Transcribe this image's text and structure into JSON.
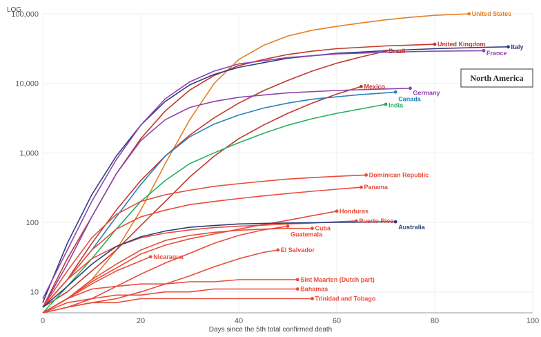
{
  "chart_data": {
    "type": "line",
    "title": "",
    "ylabel": "LOG",
    "xlabel": "Days since the 5th total confirmed death",
    "yscale": "log",
    "xlim": [
      0,
      100
    ],
    "ylim": [
      5,
      100000
    ],
    "x_ticks": [
      0,
      20,
      40,
      60,
      80,
      100
    ],
    "y_ticks": [
      10,
      100,
      1000,
      10000,
      100000
    ],
    "y_tick_labels": [
      "10",
      "100",
      "1,000",
      "10,000",
      "100,000"
    ],
    "grid": true,
    "panel_title": "North America",
    "series": [
      {
        "name": "United States",
        "color": "#e67e22",
        "x": [
          0,
          5,
          10,
          15,
          20,
          25,
          30,
          35,
          40,
          45,
          50,
          55,
          60,
          65,
          70,
          75,
          80,
          87
        ],
        "y": [
          5,
          8,
          15,
          40,
          150,
          700,
          3000,
          10000,
          22000,
          35000,
          48000,
          58000,
          66000,
          74000,
          82000,
          89000,
          95000,
          100000
        ]
      },
      {
        "name": "United Kingdom",
        "color": "#c0392b",
        "x": [
          0,
          5,
          10,
          15,
          20,
          25,
          30,
          35,
          40,
          45,
          50,
          55,
          60,
          65,
          70,
          75,
          80
        ],
        "y": [
          6,
          30,
          120,
          500,
          1600,
          4000,
          8000,
          13000,
          18000,
          22000,
          26000,
          29000,
          31500,
          33000,
          34500,
          35500,
          36500
        ]
      },
      {
        "name": "Italy",
        "color": "#2c3e7a",
        "x": [
          0,
          5,
          10,
          15,
          20,
          25,
          30,
          35,
          40,
          50,
          60,
          70,
          80,
          90,
          95
        ],
        "y": [
          7,
          50,
          250,
          900,
          2500,
          5500,
          9500,
          13500,
          17000,
          23000,
          27000,
          29500,
          31500,
          33000,
          33500
        ]
      },
      {
        "name": "Brazil",
        "color": "#c0392b",
        "x": [
          0,
          5,
          10,
          15,
          20,
          25,
          30,
          35,
          40,
          45,
          50,
          55,
          60,
          65,
          70
        ],
        "y": [
          6,
          15,
          50,
          150,
          400,
          900,
          1800,
          3200,
          5200,
          7800,
          11000,
          15000,
          19500,
          24000,
          29000
        ]
      },
      {
        "name": "France",
        "color": "#8e44ad",
        "x": [
          0,
          5,
          10,
          15,
          20,
          25,
          30,
          35,
          40,
          50,
          60,
          70,
          80,
          90
        ],
        "y": [
          8,
          40,
          200,
          800,
          2500,
          6000,
          10500,
          15000,
          19000,
          23500,
          26500,
          28000,
          29000,
          29500
        ]
      },
      {
        "name": "Mexico",
        "color": "#c0392b",
        "x": [
          0,
          5,
          10,
          15,
          20,
          25,
          30,
          35,
          40,
          45,
          50,
          55,
          60,
          65
        ],
        "y": [
          6,
          10,
          20,
          40,
          90,
          200,
          450,
          900,
          1600,
          2500,
          3700,
          5200,
          7000,
          9000
        ]
      },
      {
        "name": "Germany",
        "color": "#8e44ad",
        "x": [
          0,
          5,
          10,
          15,
          20,
          25,
          30,
          35,
          40,
          50,
          60,
          70,
          75
        ],
        "y": [
          6,
          25,
          120,
          500,
          1500,
          3000,
          4500,
          5500,
          6300,
          7300,
          7900,
          8300,
          8500
        ]
      },
      {
        "name": "Canada",
        "color": "#2980b9",
        "x": [
          0,
          5,
          10,
          15,
          20,
          25,
          30,
          35,
          40,
          45,
          50,
          55,
          60,
          65,
          70,
          72
        ],
        "y": [
          6,
          15,
          40,
          120,
          350,
          900,
          1700,
          2600,
          3500,
          4400,
          5200,
          5900,
          6400,
          6900,
          7300,
          7500
        ]
      },
      {
        "name": "India",
        "color": "#27ae60",
        "x": [
          0,
          5,
          10,
          15,
          20,
          25,
          30,
          35,
          40,
          45,
          50,
          55,
          60,
          65,
          70
        ],
        "y": [
          5,
          12,
          30,
          80,
          200,
          400,
          700,
          1000,
          1400,
          1900,
          2500,
          3100,
          3700,
          4300,
          5000
        ]
      },
      {
        "name": "Dominican Republic",
        "color": "#e74c3c",
        "x": [
          0,
          5,
          10,
          15,
          20,
          25,
          30,
          35,
          40,
          45,
          50,
          55,
          60,
          66
        ],
        "y": [
          6,
          20,
          60,
          130,
          200,
          250,
          290,
          330,
          360,
          390,
          420,
          440,
          460,
          480
        ]
      },
      {
        "name": "Panama",
        "color": "#e74c3c",
        "x": [
          0,
          5,
          10,
          15,
          20,
          25,
          30,
          35,
          40,
          45,
          50,
          55,
          60,
          65
        ],
        "y": [
          6,
          15,
          40,
          80,
          120,
          150,
          180,
          200,
          220,
          240,
          260,
          280,
          300,
          320
        ]
      },
      {
        "name": "Honduras",
        "color": "#e74c3c",
        "x": [
          0,
          5,
          10,
          15,
          20,
          25,
          30,
          35,
          40,
          45,
          50,
          55,
          60
        ],
        "y": [
          5,
          8,
          14,
          22,
          35,
          47,
          58,
          68,
          80,
          93,
          107,
          125,
          145
        ]
      },
      {
        "name": "Puerto Rico",
        "color": "#e74c3c",
        "x": [
          0,
          5,
          10,
          15,
          20,
          25,
          30,
          35,
          40,
          45,
          50,
          55,
          60,
          64
        ],
        "y": [
          6,
          15,
          30,
          45,
          60,
          70,
          78,
          84,
          88,
          91,
          95,
          98,
          102,
          105
        ]
      },
      {
        "name": "Australia",
        "color": "#2c3e7a",
        "x": [
          0,
          5,
          10,
          15,
          20,
          25,
          30,
          35,
          40,
          50,
          60,
          70,
          72
        ],
        "y": [
          6,
          12,
          25,
          45,
          62,
          75,
          85,
          90,
          95,
          98,
          100,
          102,
          102
        ]
      },
      {
        "name": "Cuba",
        "color": "#e74c3c",
        "x": [
          0,
          5,
          10,
          15,
          20,
          25,
          30,
          35,
          40,
          45,
          50,
          55
        ],
        "y": [
          5,
          8,
          15,
          25,
          40,
          55,
          65,
          72,
          77,
          80,
          82,
          82
        ]
      },
      {
        "name": "Guatemala",
        "color": "#e74c3c",
        "x": [
          0,
          5,
          10,
          15,
          20,
          25,
          30,
          35,
          40,
          45,
          50
        ],
        "y": [
          5,
          6,
          8,
          12,
          18,
          26,
          36,
          50,
          65,
          78,
          88
        ]
      },
      {
        "name": "El Salvador",
        "color": "#e74c3c",
        "x": [
          0,
          5,
          10,
          15,
          20,
          25,
          30,
          35,
          40,
          45,
          48
        ],
        "y": [
          5,
          6,
          7,
          8,
          10,
          13,
          17,
          23,
          30,
          37,
          40
        ]
      },
      {
        "name": "Nicaragua",
        "color": "#e74c3c",
        "x": [
          0,
          5,
          10,
          15,
          20,
          22
        ],
        "y": [
          5,
          8,
          13,
          20,
          28,
          32
        ]
      },
      {
        "name": "Sint Maarten (Dutch part)",
        "color": "#e74c3c",
        "x": [
          0,
          5,
          10,
          15,
          20,
          25,
          30,
          35,
          40,
          45,
          50,
          52
        ],
        "y": [
          5,
          8,
          11,
          12,
          13,
          13,
          14,
          14,
          15,
          15,
          15,
          15
        ]
      },
      {
        "name": "Bahamas",
        "color": "#e74c3c",
        "x": [
          0,
          5,
          10,
          15,
          20,
          25,
          30,
          35,
          40,
          45,
          50,
          52
        ],
        "y": [
          5,
          7,
          8,
          9,
          9,
          10,
          10,
          11,
          11,
          11,
          11,
          11
        ]
      },
      {
        "name": "Trinidad and Tobago",
        "color": "#e74c3c",
        "x": [
          0,
          5,
          10,
          15,
          20,
          25,
          30,
          35,
          40,
          45,
          50,
          55
        ],
        "y": [
          5,
          6,
          7,
          7,
          8,
          8,
          8,
          8,
          8,
          8,
          8,
          8
        ]
      }
    ]
  }
}
